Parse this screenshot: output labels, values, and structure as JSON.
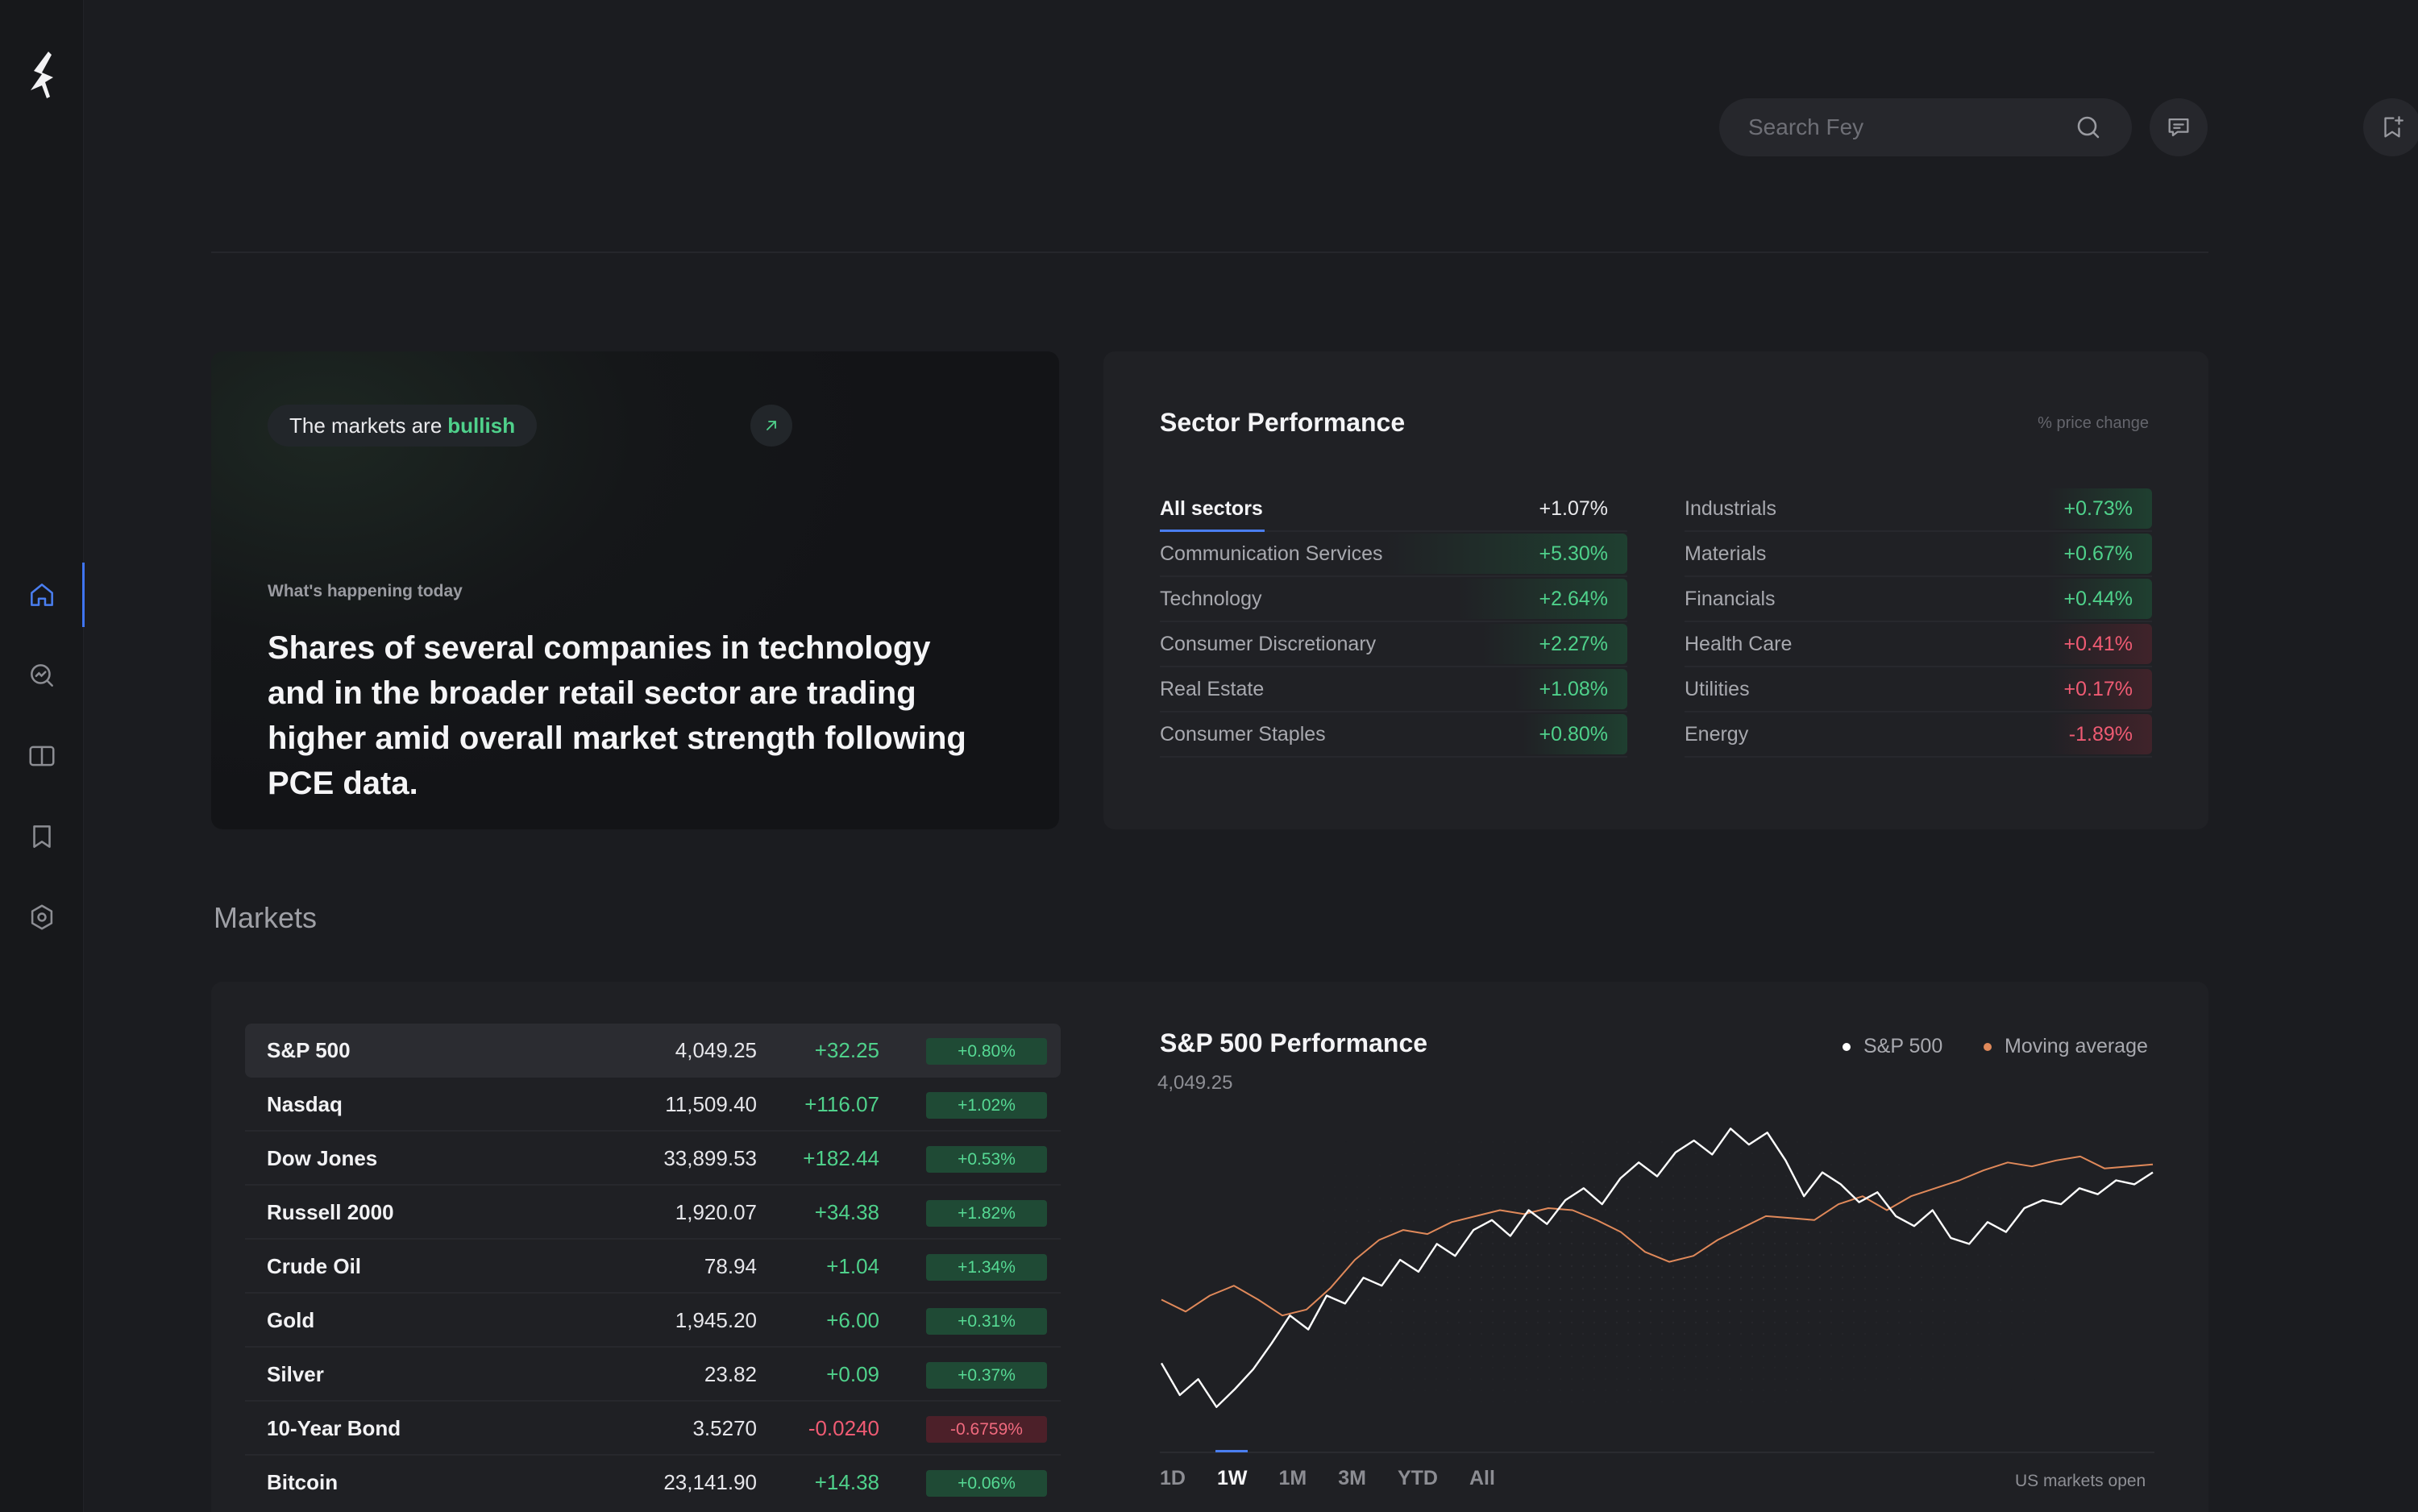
{
  "sidebar": {
    "logo": "fey-logo",
    "items": [
      {
        "icon": "home-icon",
        "active": true
      },
      {
        "icon": "search-chart-icon",
        "active": false
      },
      {
        "icon": "book-icon",
        "active": false
      },
      {
        "icon": "bookmark-icon",
        "active": false
      },
      {
        "icon": "settings-icon",
        "active": false
      }
    ]
  },
  "header": {
    "search_placeholder": "Search Fey",
    "buttons": [
      "search-icon",
      "chat-icon",
      "bookmark-add-icon"
    ]
  },
  "hero": {
    "pill_prefix": "The markets are",
    "pill_accent": "bullish",
    "kicker": "What's happening today",
    "headline": "Shares of several companies in technology and in the broader retail sector are trading higher amid overall market strength following PCE data."
  },
  "sectors": {
    "title": "Sector Performance",
    "note": "% price change",
    "left": [
      {
        "name": "All sectors",
        "value": "+1.07%",
        "change": 1.07
      },
      {
        "name": "Communication Services",
        "value": "+5.30%",
        "change": 5.3
      },
      {
        "name": "Technology",
        "value": "+2.64%",
        "change": 2.64
      },
      {
        "name": "Consumer Discretionary",
        "value": "+2.27%",
        "change": 2.27
      },
      {
        "name": "Real Estate",
        "value": "+1.08%",
        "change": 1.08
      },
      {
        "name": "Consumer Staples",
        "value": "+0.80%",
        "change": 0.8
      }
    ],
    "right": [
      {
        "name": "Industrials",
        "value": "+0.73%",
        "change": 0.73,
        "sentiment": "pos"
      },
      {
        "name": "Materials",
        "value": "+0.67%",
        "change": 0.67,
        "sentiment": "pos"
      },
      {
        "name": "Financials",
        "value": "+0.44%",
        "change": 0.44,
        "sentiment": "pos"
      },
      {
        "name": "Health Care",
        "value": "+0.41%",
        "change": 0.41,
        "sentiment": "neg"
      },
      {
        "name": "Utilities",
        "value": "+0.17%",
        "change": 0.17,
        "sentiment": "neg"
      },
      {
        "name": "Energy",
        "value": "-1.89%",
        "change": -1.89,
        "sentiment": "neg"
      }
    ]
  },
  "markets": {
    "title": "Markets",
    "rows": [
      {
        "name": "S&P 500",
        "price": "4,049.25",
        "change": "+32.25",
        "pct": "+0.80%",
        "dir": "up"
      },
      {
        "name": "Nasdaq",
        "price": "11,509.40",
        "change": "+116.07",
        "pct": "+1.02%",
        "dir": "up"
      },
      {
        "name": "Dow Jones",
        "price": "33,899.53",
        "change": "+182.44",
        "pct": "+0.53%",
        "dir": "up"
      },
      {
        "name": "Russell 2000",
        "price": "1,920.07",
        "change": "+34.38",
        "pct": "+1.82%",
        "dir": "up"
      },
      {
        "name": "Crude Oil",
        "price": "78.94",
        "change": "+1.04",
        "pct": "+1.34%",
        "dir": "up"
      },
      {
        "name": "Gold",
        "price": "1,945.20",
        "change": "+6.00",
        "pct": "+0.31%",
        "dir": "up"
      },
      {
        "name": "Silver",
        "price": "23.82",
        "change": "+0.09",
        "pct": "+0.37%",
        "dir": "up"
      },
      {
        "name": "10-Year Bond",
        "price": "3.5270",
        "change": "-0.0240",
        "pct": "-0.6759%",
        "dir": "down"
      },
      {
        "name": "Bitcoin",
        "price": "23,141.90",
        "change": "+14.38",
        "pct": "+0.06%",
        "dir": "up"
      }
    ]
  },
  "performance": {
    "title": "S&P 500 Performance",
    "price": "4,049.25",
    "legend": [
      {
        "label": "S&P 500",
        "color": "#ffffff"
      },
      {
        "label": "Moving average",
        "color": "#e0895a"
      }
    ],
    "ranges": [
      "1D",
      "1W",
      "1M",
      "3M",
      "YTD",
      "All"
    ],
    "active_range": "1W",
    "status": "US markets open"
  },
  "chart_data": {
    "type": "line",
    "title": "S&P 500 Performance",
    "series": [
      {
        "name": "S&P 500",
        "color": "#ffffff",
        "values": [
          3978,
          3962,
          3970,
          3956,
          3965,
          3975,
          3988,
          4002,
          3995,
          4012,
          4008,
          4021,
          4017,
          4030,
          4024,
          4038,
          4032,
          4045,
          4050,
          4042,
          4055,
          4048,
          4060,
          4066,
          4058,
          4071,
          4079,
          4072,
          4084,
          4090,
          4083,
          4096,
          4088,
          4094,
          4080,
          4062,
          4074,
          4068,
          4059,
          4064,
          4052,
          4047,
          4055,
          4041,
          4038,
          4049,
          4044,
          4056,
          4060,
          4058,
          4066,
          4063,
          4070,
          4068,
          4074
        ]
      },
      {
        "name": "Moving average",
        "color": "#e0895a",
        "values": [
          4010,
          4004,
          4012,
          4017,
          4010,
          4002,
          4005,
          4016,
          4030,
          4040,
          4045,
          4043,
          4049,
          4052,
          4055,
          4053,
          4056,
          4055,
          4050,
          4044,
          4034,
          4029,
          4032,
          4040,
          4046,
          4052,
          4051,
          4050,
          4058,
          4062,
          4055,
          4062,
          4066,
          4070,
          4075,
          4079,
          4077,
          4080,
          4082,
          4076,
          4077,
          4078
        ]
      }
    ]
  }
}
